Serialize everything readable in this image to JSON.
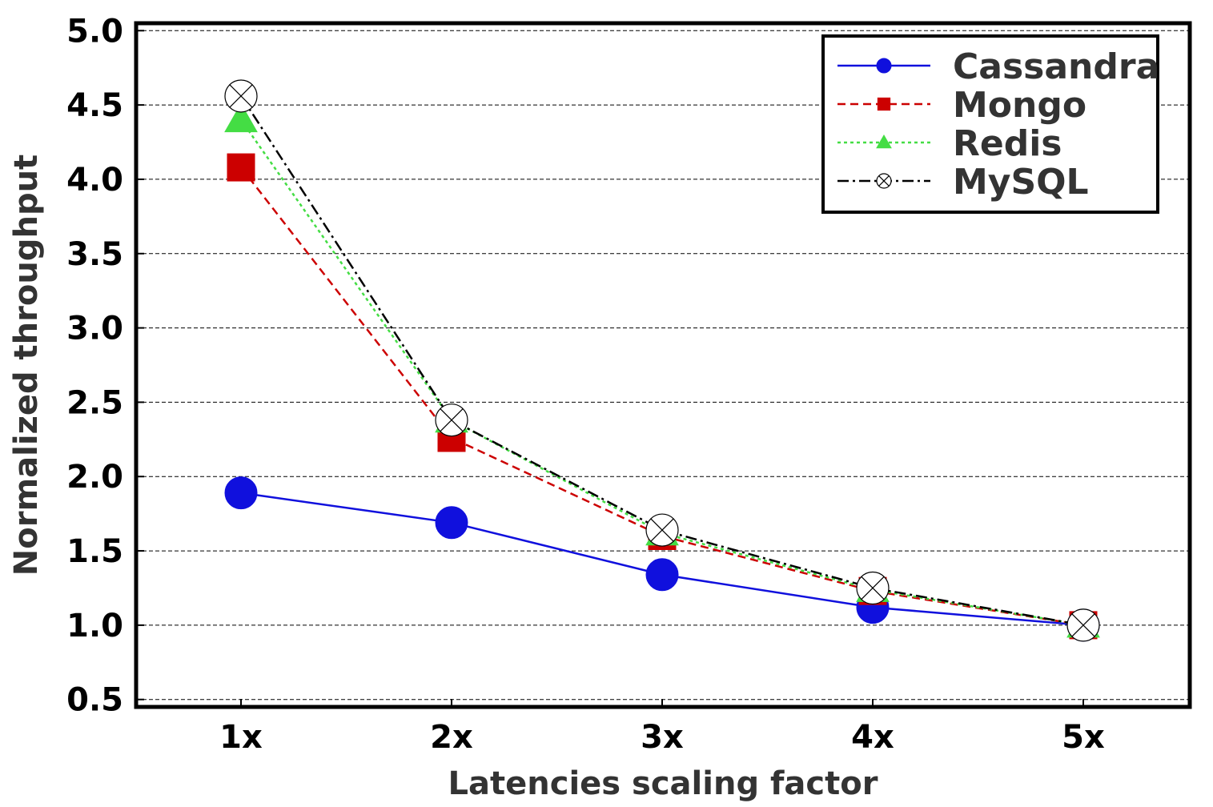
{
  "chart_data": {
    "type": "line",
    "title": "",
    "xlabel": "Latencies scaling factor",
    "ylabel": "Normalized throughput",
    "categories": [
      "1x",
      "2x",
      "3x",
      "4x",
      "5x"
    ],
    "ylim": [
      0.45,
      5.05
    ],
    "yticks": [
      "0.5",
      "1.0",
      "1.5",
      "2.0",
      "2.5",
      "3.0",
      "3.5",
      "4.0",
      "4.5",
      "5.0"
    ],
    "grid": true,
    "legend_position": "top-right",
    "series": [
      {
        "name": "Cassandra",
        "color": "#1010dd",
        "marker": "circle",
        "dash": "solid",
        "values": [
          1.89,
          1.69,
          1.34,
          1.12,
          1.0
        ]
      },
      {
        "name": "Mongo",
        "color": "#cc0000",
        "marker": "square",
        "dash": "dashed",
        "values": [
          4.08,
          2.26,
          1.6,
          1.23,
          1.0
        ]
      },
      {
        "name": "Redis",
        "color": "#44dd44",
        "marker": "triangle",
        "dash": "dotted",
        "values": [
          4.4,
          2.38,
          1.62,
          1.24,
          1.0
        ]
      },
      {
        "name": "MySQL",
        "color": "#000000",
        "marker": "circle-x",
        "dash": "dashdot",
        "values": [
          4.56,
          2.38,
          1.64,
          1.25,
          1.0
        ]
      }
    ]
  }
}
